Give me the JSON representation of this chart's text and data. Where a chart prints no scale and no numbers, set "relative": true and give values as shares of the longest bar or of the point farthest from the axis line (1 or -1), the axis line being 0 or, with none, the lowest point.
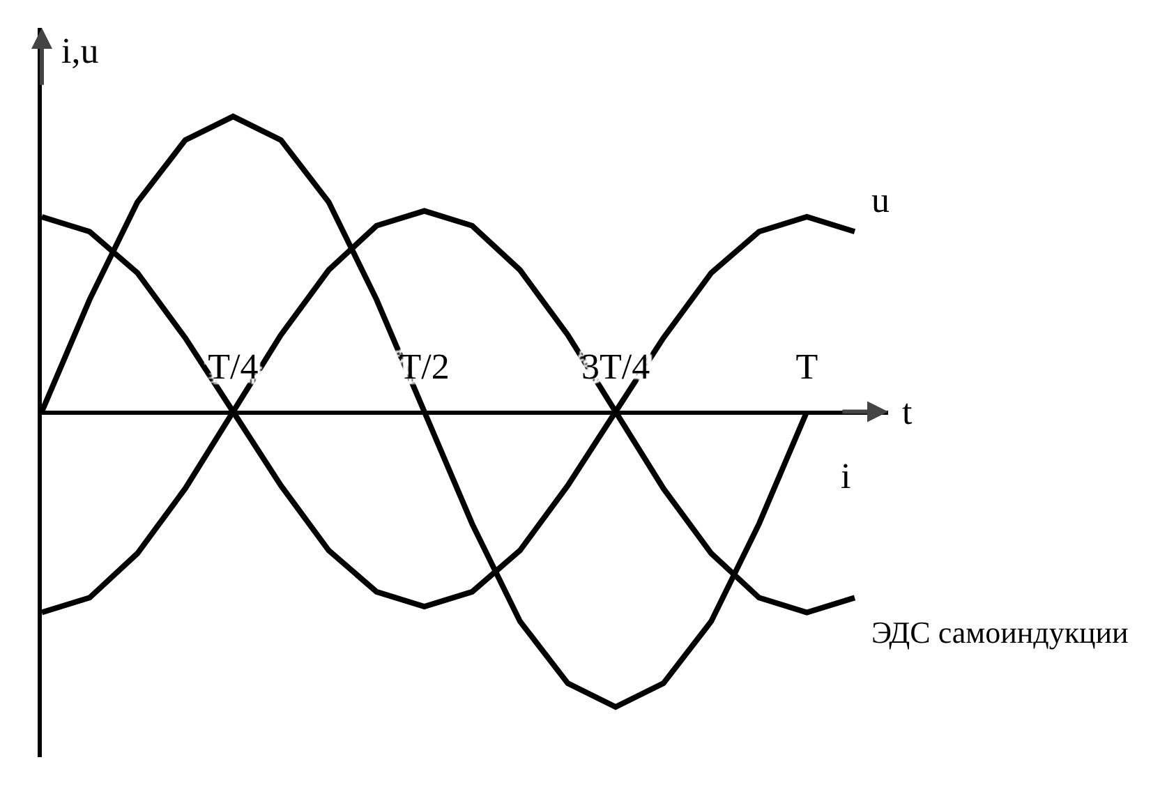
{
  "chart_data": {
    "type": "line",
    "relative": true,
    "xlabel": "t",
    "ylabel": "i,u",
    "legend": false,
    "grid": false,
    "marker": "none",
    "line_style": "solid",
    "categories": [
      null,
      null,
      null,
      null,
      "T/4",
      null,
      null,
      null,
      "T/2",
      null,
      null,
      null,
      "3T/4",
      null,
      null,
      null,
      "T",
      null
    ],
    "series": [
      {
        "name": "u",
        "color": "#000000",
        "values": [
          0.66,
          0.61,
          0.47,
          0.25,
          0,
          -0.25,
          -0.47,
          -0.61,
          -0.66,
          -0.61,
          -0.47,
          -0.25,
          0,
          0.25,
          0.47,
          0.61,
          0.66,
          0.61
        ]
      },
      {
        "name": "i",
        "color": "#000000",
        "values": [
          0,
          0.38,
          0.71,
          0.92,
          1,
          0.92,
          0.71,
          0.38,
          0,
          -0.38,
          -0.71,
          -0.92,
          -1,
          -0.92,
          -0.71,
          -0.38,
          0,
          null
        ]
      },
      {
        "name": "ЭДС самоиндукции",
        "color": "#000000",
        "values": [
          -0.68,
          -0.63,
          -0.48,
          -0.26,
          0,
          0.26,
          0.48,
          0.63,
          0.68,
          0.63,
          0.48,
          0.26,
          0,
          -0.26,
          -0.48,
          -0.63,
          -0.68,
          -0.63
        ]
      }
    ]
  }
}
